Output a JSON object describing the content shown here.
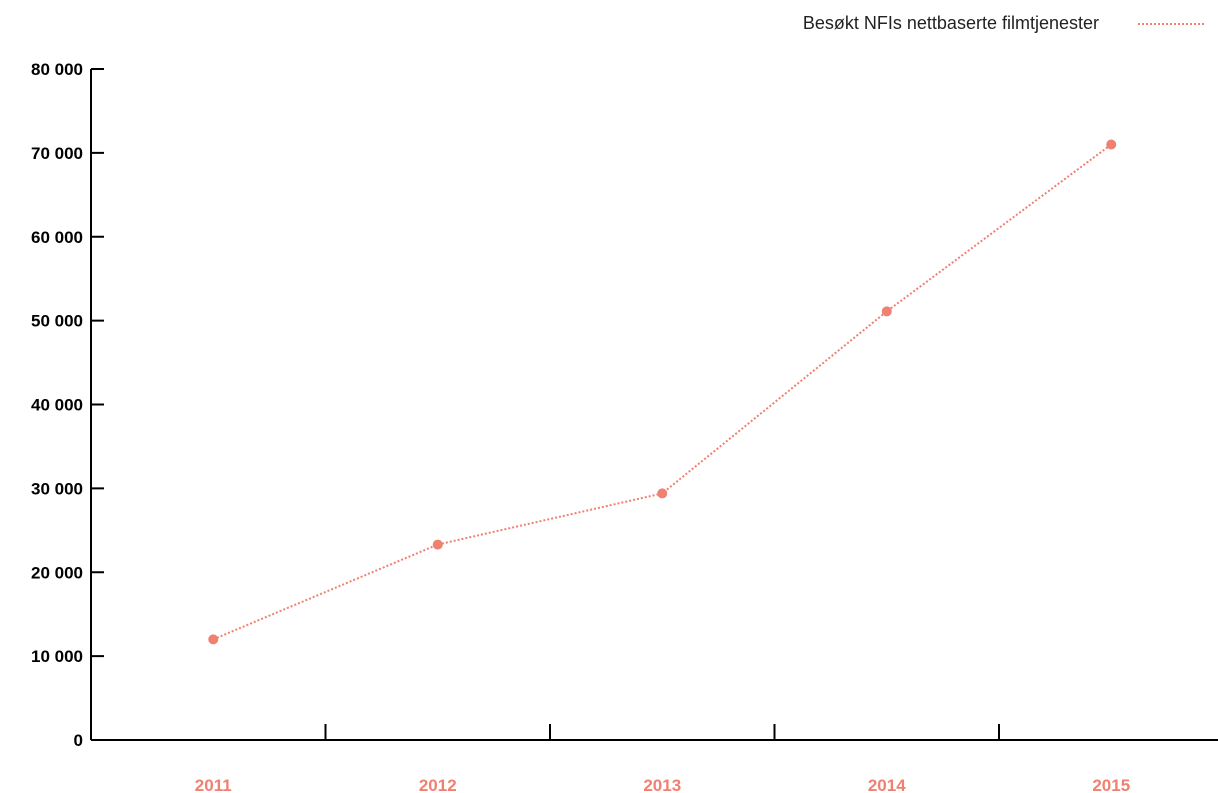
{
  "chart_data": {
    "type": "line",
    "title": "",
    "xlabel": "",
    "ylabel": "",
    "categories": [
      "2011",
      "2012",
      "2013",
      "2014",
      "2015"
    ],
    "series": [
      {
        "name": "Besøkt NFIs nettbaserte filmtjenester",
        "values": [
          12000,
          23300,
          29400,
          51100,
          71000
        ],
        "color": "#f08070",
        "line_style": "dotted"
      }
    ],
    "y_ticks": [
      "0",
      "10 000",
      "20 000",
      "30 000",
      "40 000",
      "50 000",
      "60 000",
      "70 000",
      "80 000"
    ],
    "ylim": [
      0,
      80000
    ],
    "grid": false,
    "legend_position": "top-right",
    "axis_color": "#000000",
    "x_label_color": "#f08070"
  }
}
